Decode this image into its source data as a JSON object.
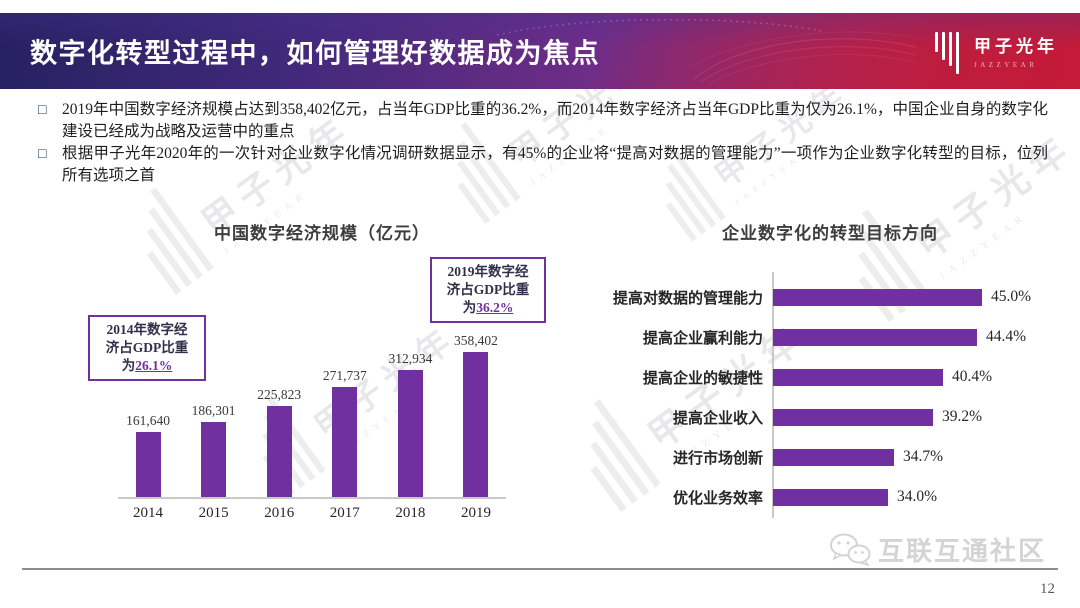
{
  "slide": {
    "title": "数字化转型过程中，如何管理好数据成为焦点",
    "bullet_marker": "□",
    "bullets": [
      "2019年中国数字经济规模占达到358,402亿元，占当年GDP比重的36.2%，而2014年数字经济占当年GDP比重为仅为26.1%，中国企业自身的数字化建设已经成为战略及运营中的重点",
      "根据甲子光年2020年的一次针对企业数字化情况调研数据显示，有45%的企业将“提高对数据的管理能力”一项作为企业数字化转型的目标，位列所有选项之首"
    ],
    "page_number": "12"
  },
  "brand": {
    "name": "甲子光年",
    "latin": "JAZZYEAR"
  },
  "community": {
    "name": "互联互通社区"
  },
  "callouts": [
    {
      "line1": "2014年数字经",
      "line2": "济占GDP比重",
      "prefix": "为",
      "value": "26.1%"
    },
    {
      "line1": "2019年数字经",
      "line2": "济占GDP比重",
      "prefix": "为",
      "value": "36.2%"
    }
  ],
  "chart_data": [
    {
      "type": "bar",
      "orientation": "vertical",
      "title": "中国数字经济规模（亿元）",
      "categories": [
        "2014",
        "2015",
        "2016",
        "2017",
        "2018",
        "2019"
      ],
      "values": [
        161640,
        186301,
        225823,
        271737,
        312934,
        358402
      ],
      "data_labels": [
        "161,640",
        "186,301",
        "225,823",
        "271,737",
        "312,934",
        "358,402"
      ],
      "ylim": [
        0,
        358402
      ],
      "bar_color": "#7030A0",
      "grid": false,
      "legend": false
    },
    {
      "type": "bar",
      "orientation": "horizontal",
      "title": "企业数字化的转型目标方向",
      "categories": [
        "提高对数据的管理能力",
        "提高企业赢利能力",
        "提高企业的敏捷性",
        "提高企业收入",
        "进行市场创新",
        "优化业务效率"
      ],
      "values": [
        45.0,
        44.4,
        40.4,
        39.2,
        34.7,
        34.0
      ],
      "data_labels": [
        "45.0%",
        "44.4%",
        "40.4%",
        "39.2%",
        "34.7%",
        "34.0%"
      ],
      "xlim": [
        20.5,
        45
      ],
      "bar_color": "#7030A0",
      "grid": false,
      "legend": false
    }
  ],
  "colors": {
    "accent_purple": "#7030A0",
    "header_gradient_start": "#252161",
    "header_gradient_end": "#c22038",
    "axis_gray": "#c9c9c9",
    "watermark_gray": "#7d7d87",
    "footer_line_gray": "#8d8d8d"
  }
}
